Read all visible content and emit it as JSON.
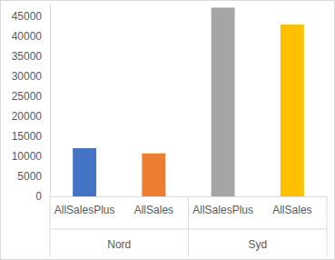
{
  "chart_data": {
    "type": "bar",
    "categories": [
      "AllSalesPlus",
      "AllSales",
      "AllSalesPlus",
      "AllSales"
    ],
    "category_groups": [
      "Nord",
      "Nord",
      "Syd",
      "Syd"
    ],
    "values": [
      12000,
      10700,
      47000,
      42800
    ],
    "colors": [
      "#4472c4",
      "#ed7d31",
      "#a5a5a5",
      "#ffc000"
    ],
    "ylim": [
      0,
      48000
    ],
    "yticks": [
      0,
      5000,
      10000,
      15000,
      20000,
      25000,
      30000,
      35000,
      40000,
      45000
    ],
    "grid": false
  }
}
